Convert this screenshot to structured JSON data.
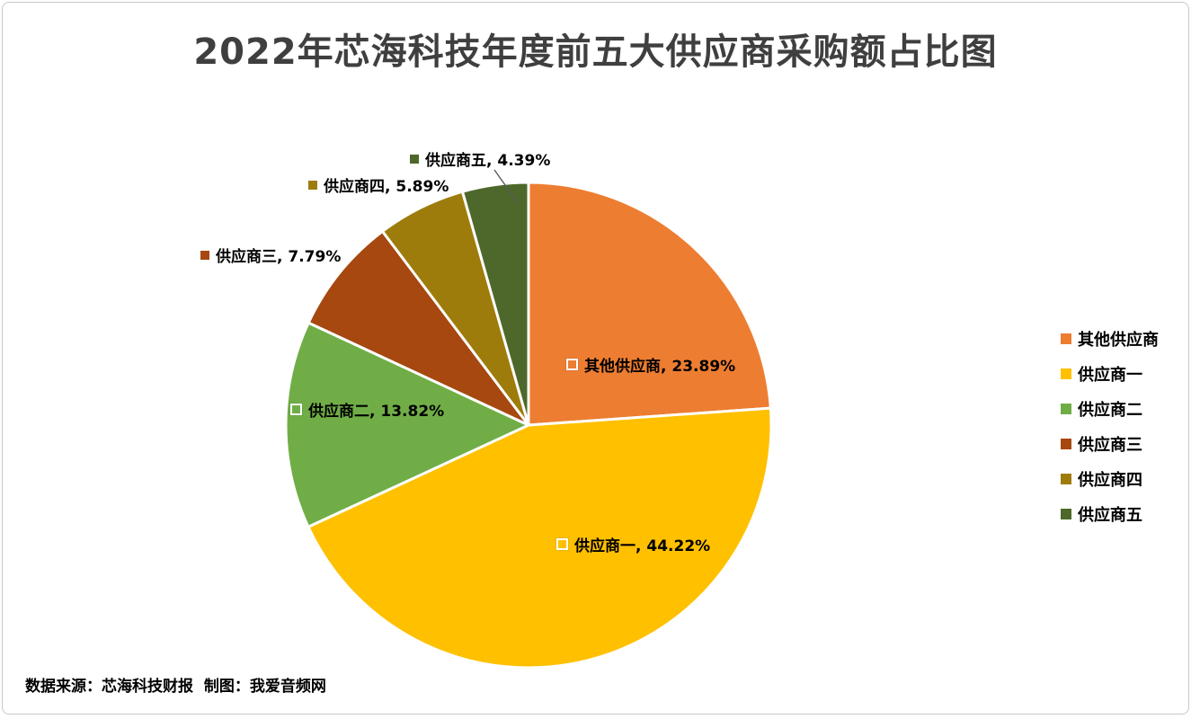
{
  "title": "2022年芯海科技年度前五大供应商采购额占比图",
  "footer": {
    "source_note": "数据来源：芯海科技财报  制图：我爱音频网"
  },
  "colors": {
    "background": "#FFFFFF",
    "canvas_border": "#C9C9C9",
    "title_text": "#3F3F3F",
    "label_text": "#000000",
    "leader_line": "#595959"
  },
  "chart_data": {
    "type": "pie",
    "title": "2022年芯海科技年度前五大供应商采购额占比图",
    "legend_position": "right",
    "start_angle_deg": 0,
    "direction": "clockwise",
    "slices": [
      {
        "label": "其他供应商",
        "value": 23.89,
        "color": "#ED7D31",
        "data_label": "其他供应商, 23.89%",
        "label_placement": "inside"
      },
      {
        "label": "供应商一",
        "value": 44.22,
        "color": "#FFC000",
        "data_label": "供应商一, 44.22%",
        "label_placement": "inside"
      },
      {
        "label": "供应商二",
        "value": 13.82,
        "color": "#70AD47",
        "data_label": "供应商二, 13.82%",
        "label_placement": "inside"
      },
      {
        "label": "供应商三",
        "value": 7.79,
        "color": "#A6480F",
        "data_label": "供应商三, 7.79%",
        "label_placement": "outside"
      },
      {
        "label": "供应商四",
        "value": 5.89,
        "color": "#9E7C0B",
        "data_label": "供应商四, 5.89%",
        "label_placement": "outside"
      },
      {
        "label": "供应商五",
        "value": 4.39,
        "color": "#4E682B",
        "data_label": "供应商五, 4.39%",
        "label_placement": "outside"
      }
    ],
    "legend_items": [
      "其他供应商",
      "供应商一",
      "供应商二",
      "供应商三",
      "供应商四",
      "供应商五"
    ]
  }
}
